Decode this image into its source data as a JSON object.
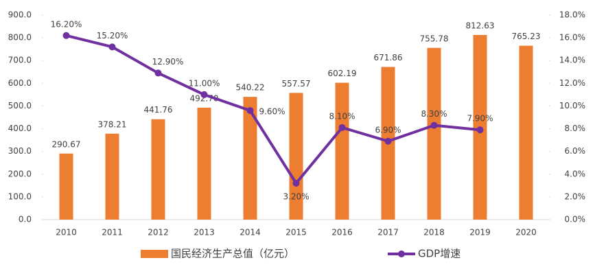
{
  "chart_data": {
    "type": "combo",
    "categories": [
      "2010",
      "2011",
      "2012",
      "2013",
      "2014",
      "2015",
      "2016",
      "2017",
      "2018",
      "2019",
      "2020"
    ],
    "series": [
      {
        "name": "国民经济生产总值（亿元）",
        "type": "bar",
        "color": "#ed7d31",
        "values": [
          290.67,
          378.21,
          441.76,
          492.7,
          540.22,
          557.57,
          602.19,
          671.86,
          755.78,
          812.63,
          765.23
        ],
        "value_labels": [
          "290.67",
          "378.21",
          "441.76",
          "492.70",
          "540.22",
          "557.57",
          "602.19",
          "671.86",
          "755.78",
          "812.63",
          "765.23"
        ]
      },
      {
        "name": "GDP增速",
        "type": "line",
        "axis": "y2",
        "color": "#7030a0",
        "values": [
          16.2,
          15.2,
          12.9,
          11.0,
          9.6,
          3.2,
          8.1,
          6.9,
          8.3,
          7.9,
          null
        ],
        "value_labels": [
          "16.20%",
          "15.20%",
          "12.90%",
          "11.00%",
          "9.60%",
          "3.20%",
          "8.10%",
          "6.90%",
          "8.30%",
          "7.90%",
          null
        ]
      }
    ],
    "ylim": [
      0,
      900
    ],
    "yticks": [
      {
        "value": 0,
        "label": "0.0"
      },
      {
        "value": 100,
        "label": "100.0"
      },
      {
        "value": 200,
        "label": "200.0"
      },
      {
        "value": 300,
        "label": "300.0"
      },
      {
        "value": 400,
        "label": "400.0"
      },
      {
        "value": 500,
        "label": "500.0"
      },
      {
        "value": 600,
        "label": "600.0"
      },
      {
        "value": 700,
        "label": "700.0"
      },
      {
        "value": 800,
        "label": "800.0"
      },
      {
        "value": 900,
        "label": "900.0"
      }
    ],
    "y2lim": [
      0,
      18
    ],
    "y2ticks": [
      {
        "value": 0,
        "label": "0.0%"
      },
      {
        "value": 2,
        "label": "2.0%"
      },
      {
        "value": 4,
        "label": "4.0%"
      },
      {
        "value": 6,
        "label": "6.0%"
      },
      {
        "value": 8,
        "label": "8.0%"
      },
      {
        "value": 10,
        "label": "10.0%"
      },
      {
        "value": 12,
        "label": "12.0%"
      },
      {
        "value": 14,
        "label": "14.0%"
      },
      {
        "value": 16,
        "label": "16.0%"
      },
      {
        "value": 18,
        "label": "18.0%"
      }
    ],
    "legend": "bottom"
  }
}
